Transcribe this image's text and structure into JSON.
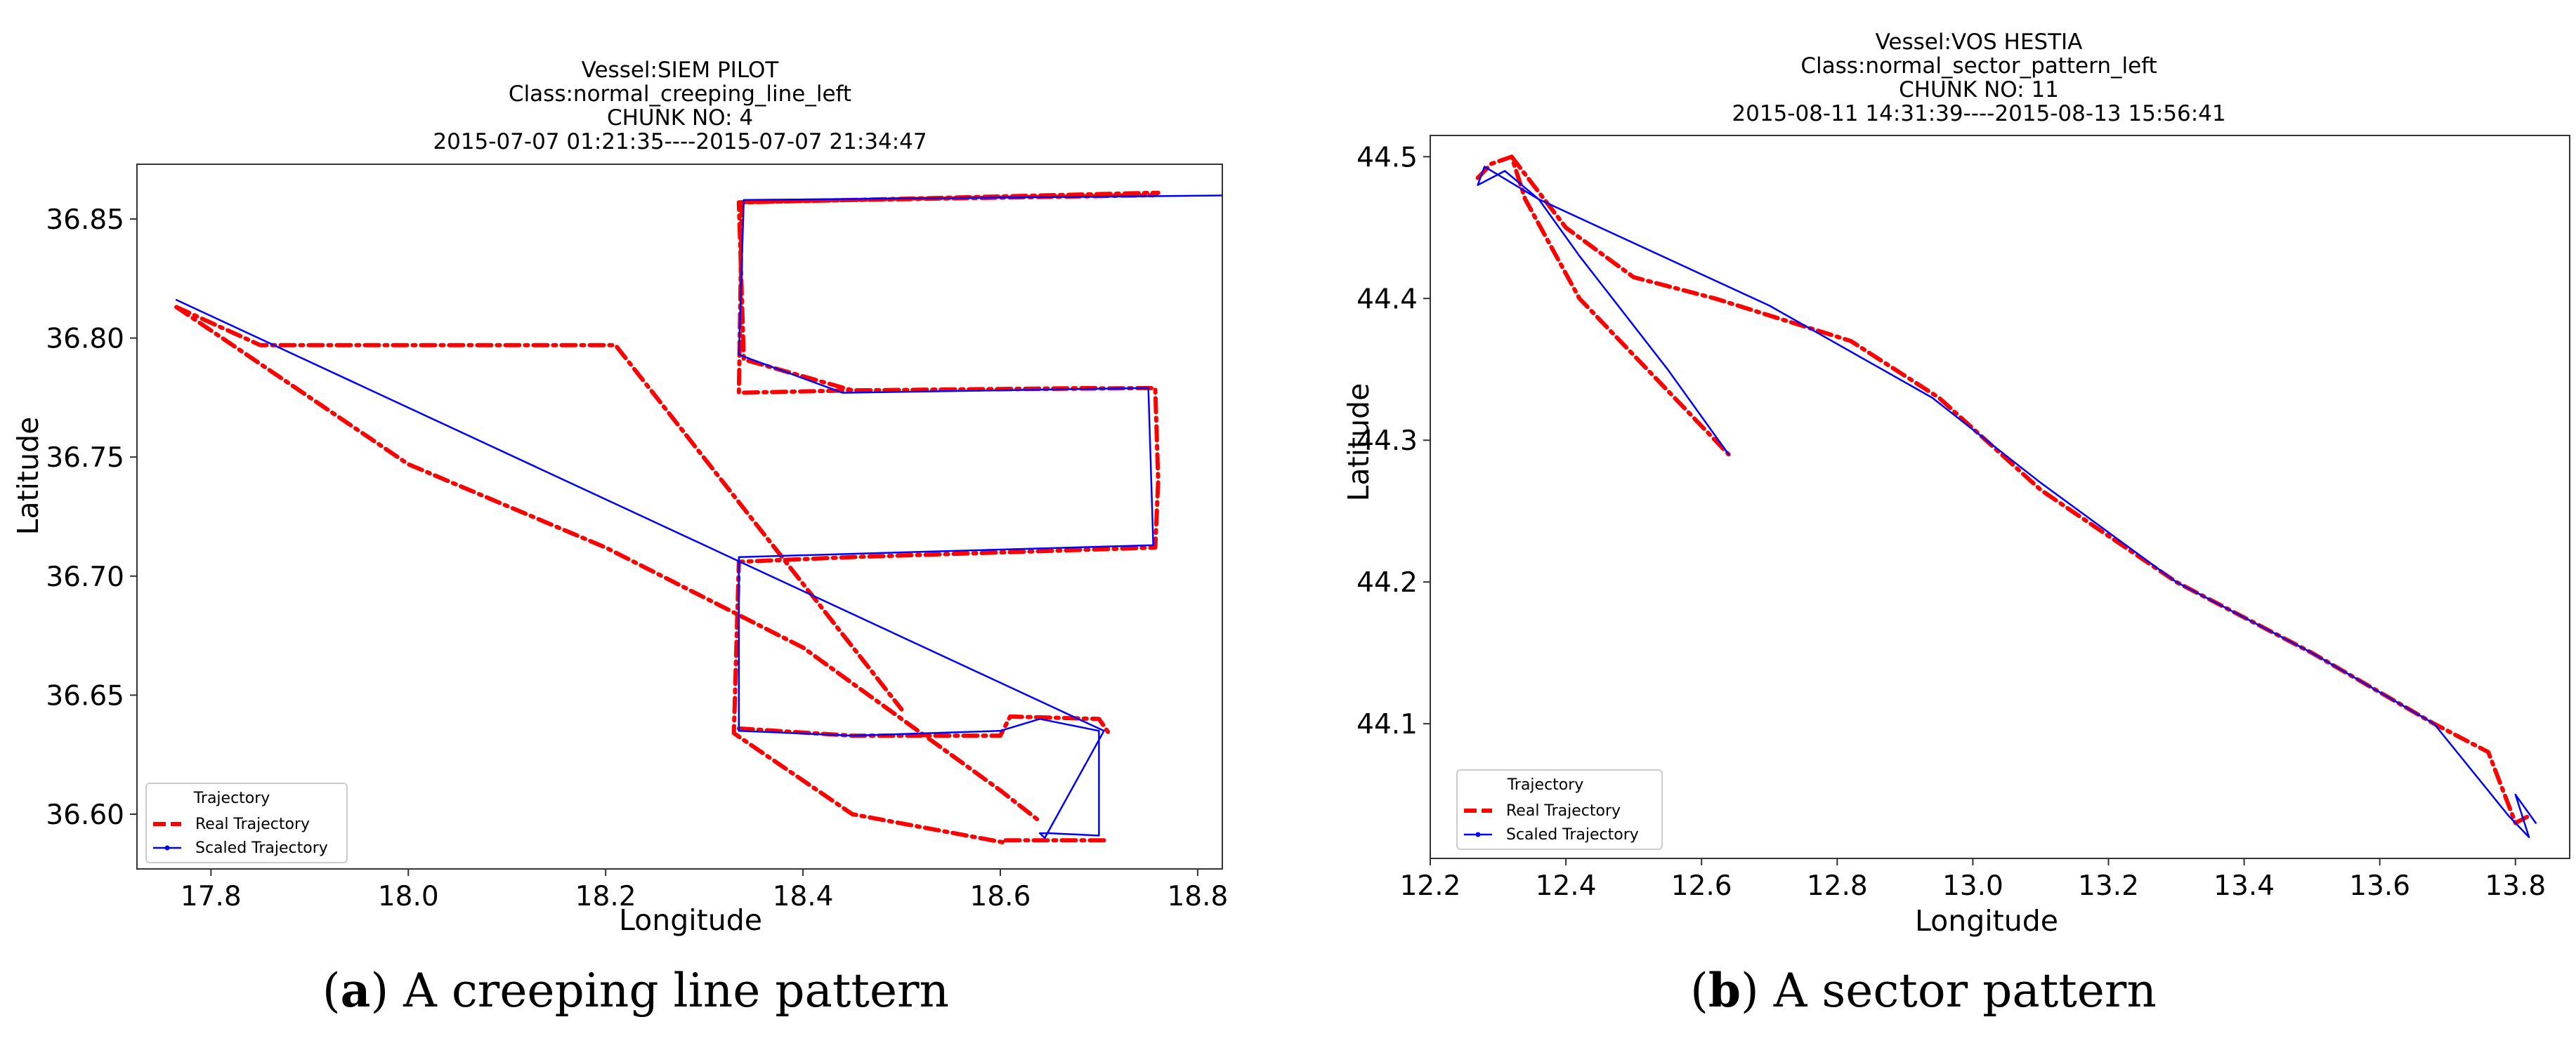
{
  "colors": {
    "real": "#ff0000",
    "scaled": "#0000ff"
  },
  "captions": [
    {
      "letter": "a",
      "text": "A creeping line pattern"
    },
    {
      "letter": "b",
      "text": "A sector pattern"
    }
  ],
  "chart_data": [
    {
      "type": "line",
      "title_lines": [
        "Vessel:SIEM PILOT",
        "Class:normal_creeping_line_left",
        "CHUNK NO: 4",
        "2015-07-07 01:21:35----2015-07-07 21:34:47"
      ],
      "xlabel": "Longitude",
      "ylabel": "Latitude",
      "xlim": [
        17.725,
        18.825
      ],
      "ylim": [
        36.577,
        36.873
      ],
      "xticks": [
        17.8,
        18.0,
        18.2,
        18.4,
        18.6,
        18.8
      ],
      "xtick_labels": [
        "17.8",
        "18.0",
        "18.2",
        "18.4",
        "18.6",
        "18.8"
      ],
      "yticks": [
        36.6,
        36.65,
        36.7,
        36.75,
        36.8,
        36.85
      ],
      "ytick_labels": [
        "36.60",
        "36.65",
        "36.70",
        "36.75",
        "36.80",
        "36.85"
      ],
      "legend": {
        "title": "Trajectory",
        "position": "lower-left",
        "entries": [
          "Real Trajectory",
          "Scaled Trajectory"
        ]
      },
      "series": [
        {
          "name": "Real Trajectory",
          "style": "dashdot",
          "color": "#ff0000",
          "x": [
            17.765,
            17.85,
            18.21,
            18.5
          ],
          "y": [
            36.813,
            36.797,
            36.797,
            36.644
          ]
        },
        {
          "name": "Real Trajectory",
          "style": "dashdot",
          "color": "#ff0000",
          "x": [
            18.705,
            18.605,
            18.605,
            18.45,
            18.33,
            18.335,
            18.45,
            18.757,
            18.76,
            18.757,
            18.45,
            18.335,
            18.338,
            18.45,
            18.755,
            18.76,
            18.755,
            18.45,
            18.335,
            18.34,
            18.45,
            18.7
          ],
          "y": [
            36.589,
            36.589,
            36.588,
            36.6,
            36.634,
            36.706,
            36.708,
            36.712,
            36.74,
            36.779,
            36.778,
            36.777,
            36.857,
            36.858,
            36.86,
            36.861,
            36.861,
            36.858,
            36.857,
            36.791,
            36.778,
            36.779
          ]
        },
        {
          "name": "Real Trajectory",
          "style": "dashdot",
          "color": "#ff0000",
          "x": [
            17.765,
            18.0,
            18.2,
            18.4,
            18.6,
            18.64
          ],
          "y": [
            36.813,
            36.747,
            36.712,
            36.67,
            36.61,
            36.597
          ]
        },
        {
          "name": "Real Trajectory",
          "style": "dashdot",
          "color": "#ff0000",
          "x": [
            18.335,
            18.45,
            18.6,
            18.61,
            18.7,
            18.71
          ],
          "y": [
            36.636,
            36.633,
            36.633,
            36.641,
            36.64,
            36.634
          ]
        },
        {
          "name": "Scaled Trajectory",
          "style": "solid",
          "color": "#0000ff",
          "x": [
            17.765,
            18.705,
            18.705,
            18.645,
            18.64,
            18.65,
            18.7,
            18.7,
            18.64,
            18.6,
            18.45,
            18.335,
            18.335,
            18.755,
            18.755,
            18.75,
            18.44,
            18.335,
            18.34,
            18.86
          ],
          "y": [
            36.816,
            36.635,
            36.635,
            36.59,
            36.592,
            36.592,
            36.591,
            36.635,
            36.64,
            36.635,
            36.633,
            36.635,
            36.708,
            36.713,
            36.713,
            36.779,
            36.777,
            36.793,
            36.858,
            36.86
          ]
        }
      ]
    },
    {
      "type": "line",
      "title_lines": [
        "Vessel:VOS HESTIA",
        "Class:normal_sector_pattern_left",
        "CHUNK NO: 11",
        "2015-08-11 14:31:39----2015-08-13 15:56:41"
      ],
      "xlabel": "Longitude",
      "ylabel": "Latitude",
      "xlim": [
        12.2,
        13.88
      ],
      "ylim": [
        44.005,
        44.515
      ],
      "xticks": [
        12.2,
        12.4,
        12.6,
        12.8,
        13.0,
        13.2,
        13.4,
        13.6,
        13.8
      ],
      "xtick_labels": [
        "12.2",
        "12.4",
        "12.6",
        "12.8",
        "13.0",
        "13.2",
        "13.4",
        "13.6",
        "13.8"
      ],
      "yticks": [
        44.1,
        44.2,
        44.3,
        44.4,
        44.5
      ],
      "ytick_labels": [
        "44.1",
        "44.2",
        "44.3",
        "44.4",
        "44.5"
      ],
      "legend": {
        "title": "Trajectory",
        "position": "lower-left",
        "entries": [
          "Real Trajectory",
          "Scaled Trajectory"
        ]
      },
      "series": [
        {
          "name": "Real Trajectory",
          "style": "dashdot",
          "color": "#ff0000",
          "x": [
            12.27,
            12.29,
            12.32,
            12.34,
            12.42,
            12.5,
            12.58,
            12.64
          ],
          "y": [
            44.485,
            44.495,
            44.5,
            44.47,
            44.4,
            44.36,
            44.32,
            44.29
          ]
        },
        {
          "name": "Real Trajectory",
          "style": "dashdot",
          "color": "#ff0000",
          "x": [
            12.32,
            12.4,
            12.5,
            12.62,
            12.72,
            12.82,
            12.95,
            13.1,
            13.3,
            13.5,
            13.68,
            13.76,
            13.8,
            13.82
          ],
          "y": [
            44.5,
            44.45,
            44.415,
            44.4,
            44.385,
            44.37,
            44.33,
            44.265,
            44.2,
            44.15,
            44.1,
            44.08,
            44.03,
            44.035
          ]
        },
        {
          "name": "Scaled Trajectory",
          "style": "solid",
          "color": "#0000ff",
          "x": [
            12.64,
            12.55,
            12.42,
            12.36,
            12.31,
            12.27,
            12.28,
            12.36,
            12.7,
            12.94,
            13.1,
            13.3,
            13.5,
            13.68,
            13.79,
            13.82,
            13.8,
            13.83
          ],
          "y": [
            44.29,
            44.35,
            44.43,
            44.47,
            44.49,
            44.48,
            44.493,
            44.47,
            44.395,
            44.33,
            44.27,
            44.2,
            44.15,
            44.1,
            44.035,
            44.02,
            44.05,
            44.03
          ]
        }
      ]
    }
  ]
}
